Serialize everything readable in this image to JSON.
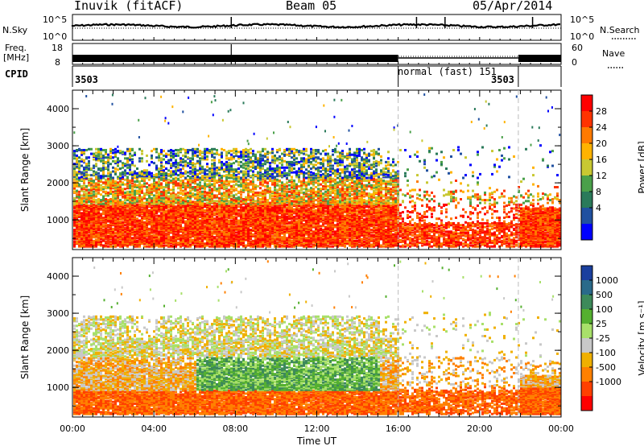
{
  "header": {
    "radar": "Inuvik (fitACF)",
    "beam": "Beam 05",
    "date": "05/Apr/2014"
  },
  "noise_panel": {
    "left_label": "N.Sky",
    "right_label": "N.Search",
    "tick_top_left": "10^5",
    "tick_bottom_left": "10^0",
    "tick_top_right": "10^5",
    "tick_bottom_right": "10^0"
  },
  "freq_panel": {
    "left_label_1": "Freq.",
    "left_label_2": "[MHz]",
    "right_label": "Nave",
    "tick_top_left": "18",
    "tick_bottom_left": "8",
    "tick_top_right": "60",
    "tick_bottom_right": "0"
  },
  "cpid_panel": {
    "label": "CPID",
    "segments": [
      {
        "text": "3503",
        "start": 0.0
      },
      {
        "text": "normal (fast) 151",
        "start": 16.0
      },
      {
        "text": "3503",
        "start": 21.9
      }
    ]
  },
  "chart_data": [
    {
      "type": "heatmap",
      "name": "power",
      "ylabel": "Slant Range [km]",
      "xlabel": "Time UT",
      "x_ticks": [
        "00:00",
        "04:00",
        "08:00",
        "12:00",
        "16:00",
        "20:00",
        "00:00"
      ],
      "x_range_hours": [
        0,
        24
      ],
      "y_ticks": [
        "1000",
        "2000",
        "3000",
        "4000"
      ],
      "ylim": [
        200,
        4500
      ],
      "colorbar": {
        "label": "Power [dB]",
        "ticks": [
          "28",
          "24",
          "20",
          "16",
          "12",
          "8",
          "4"
        ],
        "colors": [
          "#ff0000",
          "#ff3300",
          "#ff7a00",
          "#ffb300",
          "#c8c832",
          "#4aa04a",
          "#2a7a5a",
          "#2050a0",
          "#0000ff"
        ]
      },
      "dashed_lines_hours": [
        16.0,
        21.9
      ]
    },
    {
      "type": "heatmap",
      "name": "velocity",
      "ylabel": "Slant Range [km]",
      "xlabel": "Time UT",
      "x_ticks": [
        "00:00",
        "04:00",
        "08:00",
        "12:00",
        "16:00",
        "20:00",
        "00:00"
      ],
      "x_range_hours": [
        0,
        24
      ],
      "y_ticks": [
        "1000",
        "2000",
        "3000",
        "4000"
      ],
      "ylim": [
        200,
        4500
      ],
      "colorbar": {
        "label": "Velocity [m s⁻¹]",
        "ticks": [
          "1000",
          "500",
          "100",
          "25",
          "-25",
          "-100",
          "-500",
          "-1000"
        ],
        "colors": [
          "#1a3f9e",
          "#2a6a8a",
          "#3d8a5a",
          "#55b030",
          "#a8e06a",
          "#c8c8c8",
          "#f0b000",
          "#ff8000",
          "#ff4000",
          "#ff0000"
        ]
      },
      "dashed_lines_hours": [
        16.0,
        21.9
      ]
    }
  ]
}
